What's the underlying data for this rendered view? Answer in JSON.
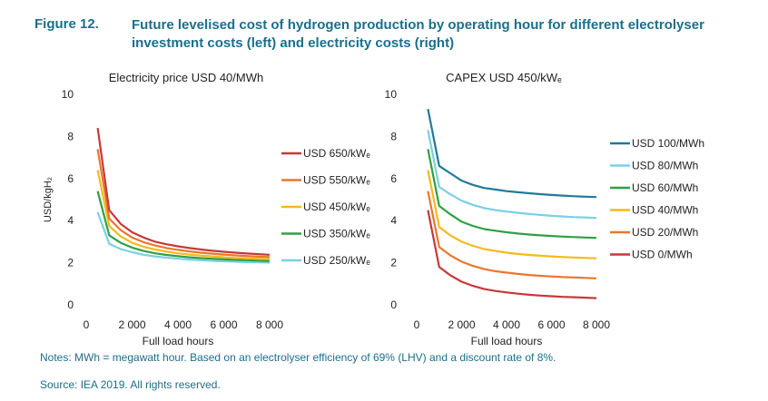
{
  "figure": {
    "label": "Figure 12.",
    "title": "Future levelised cost of hydrogen production by operating hour for different electrolyser investment costs (left) and electricity costs (right)"
  },
  "notes": "Notes: MWh = megawatt hour. Based on an electrolyser efficiency of 69% (LHV) and a discount rate of 8%.",
  "source": "Source: IEA 2019. All rights reserved.",
  "chart_data": [
    {
      "type": "line",
      "title": "Electricity price USD 40/MWh",
      "xlabel": "Full load hours",
      "ylabel": "USD/kgH₂",
      "xlim": [
        0,
        8000
      ],
      "ylim": [
        0,
        10
      ],
      "xticks": [
        0,
        2000,
        4000,
        6000,
        8000
      ],
      "xtick_labels": [
        "0",
        "2 000",
        "4 000",
        "6 000",
        "8 000"
      ],
      "yticks": [
        0,
        2,
        4,
        6,
        8,
        10
      ],
      "grid": false,
      "legend": "right",
      "x": [
        500,
        1000,
        1500,
        2000,
        2500,
        3000,
        3500,
        4000,
        4500,
        5000,
        5500,
        6000,
        6500,
        7000,
        7500,
        8000
      ],
      "series": [
        {
          "name": "USD 650/kWₑ",
          "color": "#c8373a",
          "values": [
            8.4,
            4.5,
            3.85,
            3.45,
            3.2,
            3.0,
            2.88,
            2.78,
            2.7,
            2.63,
            2.57,
            2.52,
            2.48,
            2.44,
            2.41,
            2.38
          ]
        },
        {
          "name": "USD 550/kWₑ",
          "color": "#e9772b",
          "values": [
            7.4,
            4.1,
            3.55,
            3.2,
            2.98,
            2.82,
            2.7,
            2.61,
            2.54,
            2.48,
            2.43,
            2.39,
            2.35,
            2.32,
            2.29,
            2.27
          ]
        },
        {
          "name": "USD 450/kWₑ",
          "color": "#f5b91c",
          "values": [
            6.4,
            3.75,
            3.25,
            2.95,
            2.76,
            2.63,
            2.53,
            2.45,
            2.39,
            2.34,
            2.3,
            2.26,
            2.23,
            2.21,
            2.19,
            2.17
          ]
        },
        {
          "name": "USD 350/kWₑ",
          "color": "#2ea043",
          "values": [
            5.4,
            3.3,
            2.95,
            2.72,
            2.56,
            2.45,
            2.37,
            2.31,
            2.26,
            2.22,
            2.19,
            2.16,
            2.14,
            2.12,
            2.1,
            2.08
          ]
        },
        {
          "name": "USD 250/kWₑ",
          "color": "#7ad0e3",
          "values": [
            4.4,
            2.9,
            2.65,
            2.5,
            2.38,
            2.3,
            2.24,
            2.19,
            2.15,
            2.12,
            2.09,
            2.07,
            2.05,
            2.03,
            2.02,
            2.01
          ]
        }
      ]
    },
    {
      "type": "line",
      "title": "CAPEX USD 450/kWₑ",
      "xlabel": "Full load hours",
      "ylabel": "",
      "xlim": [
        0,
        8000
      ],
      "ylim": [
        0,
        10
      ],
      "xticks": [
        0,
        2000,
        4000,
        6000,
        8000
      ],
      "xtick_labels": [
        "0",
        "2 000",
        "4 000",
        "6 000",
        "8 000"
      ],
      "yticks": [
        0,
        2,
        4,
        6,
        8,
        10
      ],
      "grid": false,
      "legend": "right",
      "x": [
        500,
        1000,
        1500,
        2000,
        2500,
        3000,
        3500,
        4000,
        4500,
        5000,
        5500,
        6000,
        6500,
        7000,
        7500,
        8000
      ],
      "series": [
        {
          "name": "USD 100/MWh",
          "color": "#1f7a9a",
          "values": [
            9.3,
            6.6,
            6.25,
            5.9,
            5.7,
            5.55,
            5.48,
            5.4,
            5.35,
            5.3,
            5.26,
            5.22,
            5.19,
            5.16,
            5.14,
            5.12
          ]
        },
        {
          "name": "USD 80/MWh",
          "color": "#7ad0e3",
          "values": [
            8.3,
            5.6,
            5.25,
            4.95,
            4.75,
            4.6,
            4.5,
            4.43,
            4.37,
            4.32,
            4.27,
            4.23,
            4.2,
            4.17,
            4.15,
            4.13
          ]
        },
        {
          "name": "USD 60/MWh",
          "color": "#2ea043",
          "values": [
            7.4,
            4.7,
            4.3,
            3.95,
            3.75,
            3.6,
            3.52,
            3.45,
            3.39,
            3.34,
            3.3,
            3.27,
            3.24,
            3.22,
            3.2,
            3.18
          ]
        },
        {
          "name": "USD 40/MWh",
          "color": "#f5b91c",
          "values": [
            6.4,
            3.7,
            3.3,
            3.0,
            2.8,
            2.65,
            2.56,
            2.48,
            2.42,
            2.37,
            2.33,
            2.3,
            2.27,
            2.25,
            2.23,
            2.21
          ]
        },
        {
          "name": "USD 20/MWh",
          "color": "#e9772b",
          "values": [
            5.4,
            2.75,
            2.35,
            2.05,
            1.85,
            1.7,
            1.6,
            1.53,
            1.47,
            1.42,
            1.38,
            1.35,
            1.32,
            1.3,
            1.28,
            1.26
          ]
        },
        {
          "name": "USD 0/MWh",
          "color": "#c8373a",
          "values": [
            4.5,
            1.8,
            1.4,
            1.1,
            0.9,
            0.75,
            0.66,
            0.59,
            0.53,
            0.48,
            0.44,
            0.41,
            0.38,
            0.36,
            0.34,
            0.32
          ]
        }
      ]
    }
  ]
}
